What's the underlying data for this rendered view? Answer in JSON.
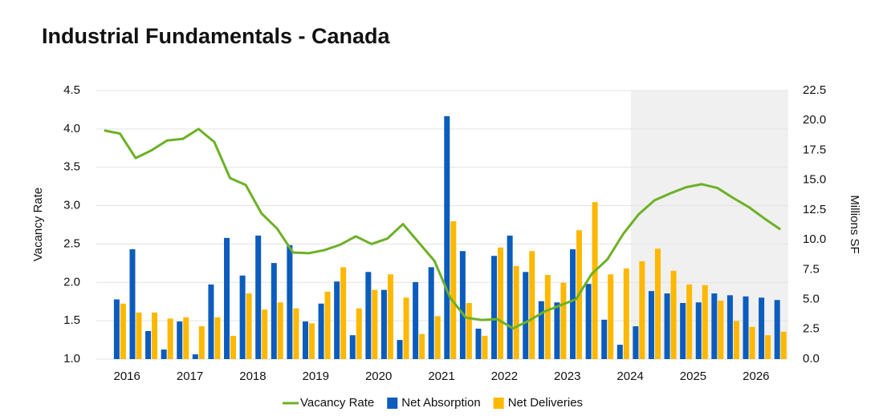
{
  "chart_data": {
    "type": "bar_line",
    "title": "Industrial Fundamentals - Canada",
    "y_label": "Vacancy Rate",
    "y2_label": "Millions SF",
    "categories": [
      null,
      "2016",
      null,
      null,
      null,
      "2017",
      null,
      null,
      null,
      "2018",
      null,
      null,
      null,
      "2019",
      null,
      null,
      null,
      "2020",
      null,
      null,
      null,
      "2021",
      null,
      null,
      null,
      "2022",
      null,
      null,
      null,
      "2023",
      null,
      null,
      null,
      "2024",
      null,
      null,
      null,
      "2025",
      null,
      null,
      null,
      "2026",
      null,
      null
    ],
    "series": [
      {
        "name": "Vacancy Rate",
        "color": "#6cb125",
        "kind": "line",
        "values": [
          3.98,
          3.94,
          3.62,
          3.72,
          3.85,
          3.87,
          4.0,
          3.83,
          3.36,
          3.27,
          2.9,
          2.7,
          2.39,
          2.38,
          2.42,
          2.49,
          2.6,
          2.5,
          2.57,
          2.76,
          2.52,
          2.28,
          1.8,
          1.54,
          1.51,
          1.52,
          1.4,
          1.5,
          1.62,
          1.7,
          1.78,
          2.11,
          2.3,
          2.63,
          2.89,
          3.07,
          3.16,
          3.24,
          3.28,
          3.23,
          3.1,
          2.98,
          2.83,
          2.69
        ]
      },
      {
        "name": "Net Absorption",
        "color": "#0b5cbd",
        "kind": "bar",
        "axis": "y2",
        "values": [
          null,
          5.0,
          9.2,
          2.35,
          0.8,
          3.15,
          0.4,
          6.25,
          10.15,
          7.0,
          10.35,
          8.05,
          9.55,
          3.15,
          4.65,
          6.5,
          2.0,
          7.3,
          5.8,
          1.6,
          6.45,
          7.7,
          20.35,
          9.05,
          2.55,
          8.65,
          10.35,
          7.3,
          4.85,
          4.75,
          9.2,
          6.3,
          3.3,
          1.2,
          2.75,
          5.7,
          5.5,
          4.7,
          4.75,
          5.5,
          5.35,
          5.25,
          5.15,
          4.95
        ]
      },
      {
        "name": "Net Deliveries",
        "color": "#ffb800",
        "kind": "bar",
        "axis": "y2",
        "values": [
          null,
          4.65,
          3.9,
          3.9,
          3.4,
          3.5,
          2.75,
          3.5,
          1.95,
          5.5,
          4.15,
          4.75,
          4.25,
          3.0,
          5.65,
          7.7,
          4.25,
          5.8,
          7.1,
          5.15,
          2.1,
          3.6,
          11.55,
          4.7,
          1.95,
          9.35,
          7.8,
          9.05,
          7.05,
          6.4,
          10.8,
          13.15,
          7.1,
          7.6,
          8.2,
          9.25,
          7.4,
          6.25,
          6.2,
          4.9,
          3.2,
          2.7,
          2.0,
          2.3
        ]
      }
    ],
    "ylim": [
      1.0,
      4.5
    ],
    "yticks": [
      {
        "value": 1.0,
        "label": "1.0"
      },
      {
        "value": 1.5,
        "label": "1.5"
      },
      {
        "value": 2.0,
        "label": "2.0"
      },
      {
        "value": 2.5,
        "label": "2.5"
      },
      {
        "value": 3.0,
        "label": "3.0"
      },
      {
        "value": 3.5,
        "label": "3.5"
      },
      {
        "value": 4.0,
        "label": "4.0"
      },
      {
        "value": 4.5,
        "label": "4.5"
      }
    ],
    "y2lim": [
      0,
      22.5
    ],
    "y2ticks": [
      {
        "value": 0,
        "label": "0.0"
      },
      {
        "value": 2.5,
        "label": "2.5"
      },
      {
        "value": 5,
        "label": "5.0"
      },
      {
        "value": 7.5,
        "label": "7.5"
      },
      {
        "value": 10,
        "label": "10.0"
      },
      {
        "value": 12.5,
        "label": "12.5"
      },
      {
        "value": 15,
        "label": "15.0"
      },
      {
        "value": 17.5,
        "label": "17.5"
      },
      {
        "value": 20,
        "label": "20.0"
      },
      {
        "value": 22.5,
        "label": "22.5"
      }
    ],
    "grid": true,
    "legend": "bottom"
  }
}
